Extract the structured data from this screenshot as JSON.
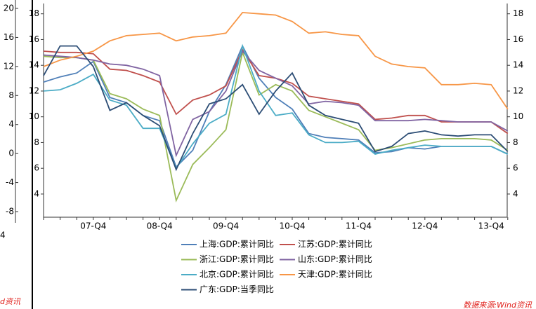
{
  "chart_data": {
    "type": "line",
    "categories": [
      null,
      null,
      null,
      "07-Q4",
      null,
      null,
      null,
      "08-Q4",
      null,
      null,
      null,
      "09-Q4",
      null,
      null,
      null,
      "10-Q4",
      null,
      null,
      null,
      "11-Q4",
      null,
      null,
      null,
      "12-Q4",
      null,
      null,
      null,
      "13-Q4",
      null
    ],
    "ylim": [
      2.2,
      18.8
    ],
    "yticks": [
      4,
      6,
      8,
      10,
      12,
      14,
      16,
      18
    ],
    "y2lim": [
      2.2,
      18.8
    ],
    "y2ticks": [
      4,
      6,
      8,
      10,
      12,
      14,
      16,
      18
    ],
    "legend": "bottom",
    "series": [
      {
        "name": "上海:GDP:累计同比",
        "color": "#4f7fb8",
        "values": [
          12.7,
          13.1,
          13.4,
          14.3,
          11.5,
          11.1,
          10.1,
          9.7,
          6.1,
          7.4,
          10.4,
          12.5,
          15.5,
          13.0,
          11.5,
          10.6,
          8.7,
          8.4,
          8.3,
          8.2,
          7.2,
          7.3,
          7.6,
          7.5,
          7.7,
          7.7,
          7.7,
          7.7,
          7.1
        ]
      },
      {
        "name": "江苏:GDP:累计同比",
        "color": "#c0504d",
        "values": [
          15.1,
          15.0,
          15.0,
          14.9,
          13.7,
          13.6,
          13.2,
          12.7,
          10.2,
          11.3,
          11.7,
          12.4,
          15.2,
          13.2,
          13.0,
          12.6,
          11.6,
          11.4,
          11.2,
          11.0,
          9.8,
          9.9,
          10.1,
          10.1,
          9.6,
          9.6,
          9.6,
          9.6,
          8.7
        ]
      },
      {
        "name": "浙江:GDP:累计同比",
        "color": "#9bbb59",
        "values": [
          14.7,
          14.6,
          14.6,
          14.4,
          11.8,
          11.4,
          10.6,
          10.1,
          3.5,
          6.3,
          7.6,
          9.0,
          15.0,
          11.7,
          12.5,
          12.0,
          10.5,
          10.0,
          9.5,
          9.0,
          7.4,
          7.6,
          7.9,
          8.2,
          8.3,
          8.3,
          8.3,
          8.2,
          7.4
        ]
      },
      {
        "name": "山东:GDP:累计同比",
        "color": "#8064a2",
        "values": [
          14.8,
          14.7,
          14.6,
          14.4,
          14.1,
          14.0,
          13.7,
          13.2,
          7.0,
          9.8,
          10.4,
          12.0,
          15.1,
          13.6,
          13.0,
          12.4,
          11.0,
          11.2,
          11.1,
          10.9,
          9.7,
          9.7,
          9.7,
          9.8,
          9.7,
          9.6,
          9.6,
          9.6,
          8.9
        ]
      },
      {
        "name": "北京:GDP:累计同比",
        "color": "#4bacc6",
        "values": [
          12.0,
          12.1,
          12.6,
          13.3,
          11.3,
          10.9,
          9.1,
          9.1,
          6.0,
          7.9,
          9.5,
          10.2,
          15.5,
          12.0,
          10.1,
          10.3,
          8.6,
          8.0,
          8.0,
          8.1,
          7.1,
          7.4,
          7.6,
          7.8,
          7.7,
          7.7,
          7.7,
          7.7,
          7.1
        ]
      },
      {
        "name": "天津:GDP:累计同比",
        "color": "#f79646",
        "values": [
          13.9,
          14.4,
          14.7,
          15.1,
          15.9,
          16.3,
          16.4,
          16.5,
          15.9,
          16.2,
          16.3,
          16.5,
          18.1,
          18.0,
          17.9,
          17.4,
          16.5,
          16.6,
          16.4,
          16.3,
          14.7,
          14.1,
          13.9,
          13.8,
          12.5,
          12.5,
          12.6,
          12.5,
          10.6
        ]
      },
      {
        "name": "广东:GDP:当季同比",
        "color": "#2c4d75",
        "values": [
          13.2,
          15.5,
          15.5,
          13.9,
          10.5,
          11.1,
          10.1,
          9.3,
          5.9,
          8.7,
          11.0,
          11.4,
          12.5,
          10.2,
          12.0,
          13.4,
          10.9,
          10.1,
          9.8,
          9.5,
          7.3,
          7.7,
          8.7,
          8.9,
          8.6,
          8.5,
          8.6,
          8.6,
          7.3
        ]
      }
    ]
  },
  "left_fragment": {
    "ylim": [
      -8,
      20
    ],
    "yticks": [
      20,
      16,
      12,
      8,
      4,
      0,
      -4,
      -8
    ],
    "x_label": "4",
    "source": "d资讯"
  },
  "source": "数据来源:Wind资讯"
}
